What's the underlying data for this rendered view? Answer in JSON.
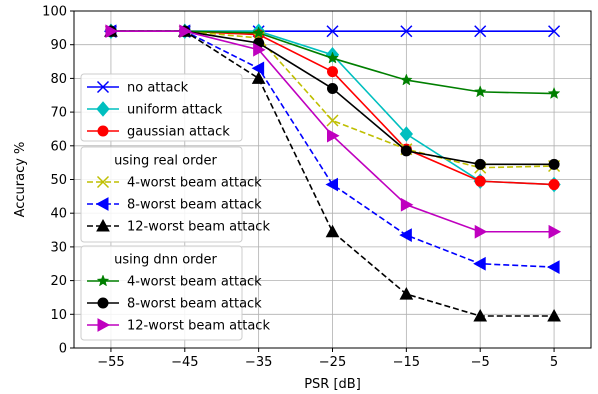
{
  "chart_data": {
    "type": "line",
    "xlabel": "PSR [dB]",
    "ylabel": "Accuracy %",
    "xlim": [
      -60,
      10
    ],
    "ylim": [
      0,
      100
    ],
    "grid": true,
    "x": [
      -55,
      -45,
      -35,
      -25,
      -15,
      -5,
      5
    ],
    "x_ticks": [
      "−55",
      "−45",
      "−35",
      "−25",
      "−15",
      "−5",
      "5"
    ],
    "y_ticks": [
      "0",
      "10",
      "20",
      "30",
      "40",
      "50",
      "60",
      "70",
      "80",
      "90",
      "100"
    ],
    "legend_groups": [
      {
        "title": "",
        "series": [
          0,
          1,
          2
        ]
      },
      {
        "title": "using real order",
        "series": [
          3,
          4,
          5
        ]
      },
      {
        "title": "using dnn order",
        "series": [
          6,
          7,
          8
        ]
      }
    ],
    "series": [
      {
        "name": "no attack",
        "color": "#0000ff",
        "marker": "x",
        "dash": "solid",
        "values": [
          94,
          94,
          94,
          94,
          94,
          94,
          94
        ]
      },
      {
        "name": "uniform attack",
        "color": "#00bfbf",
        "marker": "diamond",
        "dash": "solid",
        "values": [
          94,
          94,
          94,
          87,
          63.5,
          49.5,
          48.5
        ]
      },
      {
        "name": "gaussian attack",
        "color": "#ff0000",
        "marker": "circle",
        "dash": "solid",
        "values": [
          94,
          94,
          93,
          82,
          59,
          49.5,
          48.5
        ]
      },
      {
        "name": "4-worst beam attack",
        "color": "#bfbf00",
        "marker": "x",
        "dash": "dashed",
        "values": [
          94,
          94,
          92,
          67.5,
          59,
          53.5,
          54
        ]
      },
      {
        "name": "8-worst beam attack",
        "color": "#0000ff",
        "marker": "triangle-left",
        "dash": "dashed",
        "values": [
          94,
          94,
          83,
          48.5,
          33.5,
          25,
          24
        ]
      },
      {
        "name": "12-worst beam attack",
        "color": "#000000",
        "marker": "triangle-up",
        "dash": "dashed",
        "values": [
          94,
          94,
          80,
          34.5,
          16,
          9.5,
          9.5
        ]
      },
      {
        "name": "4-worst beam attack",
        "color": "#007f00",
        "marker": "star",
        "dash": "solid",
        "values": [
          94,
          94,
          93.5,
          86,
          79.5,
          76,
          75.5
        ]
      },
      {
        "name": "8-worst beam attack",
        "color": "#000000",
        "marker": "circle",
        "dash": "solid",
        "values": [
          94,
          94,
          90.5,
          77,
          58.5,
          54.5,
          54.5
        ]
      },
      {
        "name": "12-worst beam attack",
        "color": "#bf00bf",
        "marker": "triangle-right",
        "dash": "solid",
        "values": [
          94,
          94,
          88.5,
          63,
          42.5,
          34.5,
          34.5
        ]
      }
    ]
  }
}
